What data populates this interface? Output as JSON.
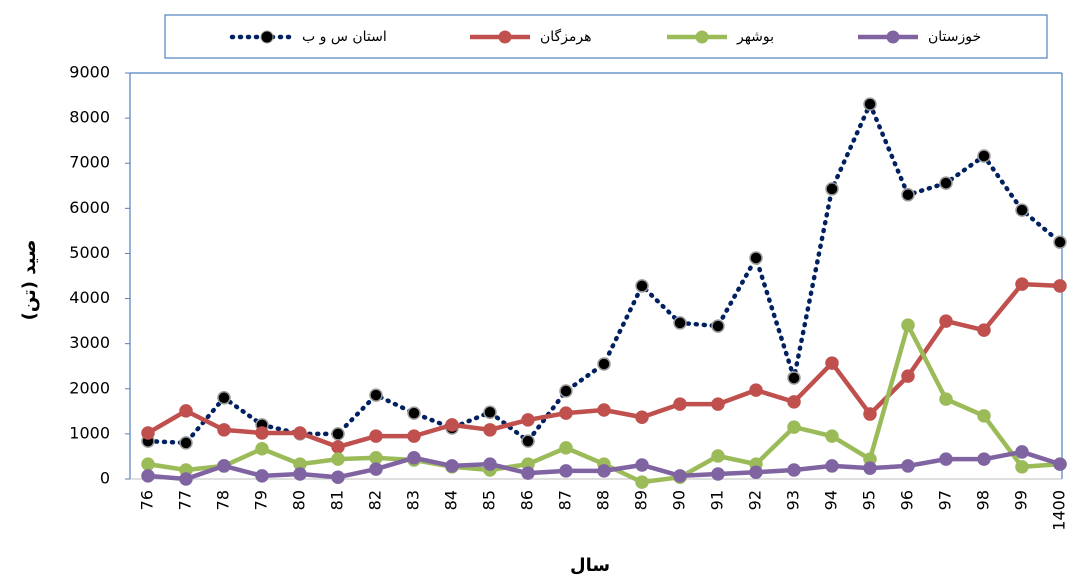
{
  "chart_data": {
    "type": "line",
    "xlabel": "سال",
    "ylabel": "صید (تن)",
    "categories": [
      "76",
      "77",
      "78",
      "79",
      "80",
      "81",
      "82",
      "83",
      "84",
      "85",
      "86",
      "87",
      "88",
      "89",
      "90",
      "91",
      "92",
      "93",
      "94",
      "95",
      "96",
      "97",
      "98",
      "99",
      "1400"
    ],
    "series": [
      {
        "name": "استان س و ب",
        "color": "#002060",
        "dash": "dotted",
        "marker_color": "#000000",
        "values": [
          840,
          800,
          1800,
          1200,
          1000,
          1000,
          1860,
          1460,
          1130,
          1480,
          840,
          1950,
          2550,
          4280,
          3460,
          3390,
          4900,
          2240,
          6430,
          8310,
          6300,
          6560,
          7160,
          5960,
          5250
        ]
      },
      {
        "name": "هرمزگان",
        "color": "#c0504d",
        "values": [
          1020,
          1510,
          1090,
          1020,
          1020,
          710,
          950,
          950,
          1200,
          1090,
          1310,
          1460,
          1530,
          1370,
          1660,
          1660,
          1970,
          1710,
          2570,
          1440,
          2280,
          3500,
          3300,
          4320,
          4280
        ]
      },
      {
        "name": "بوشهر",
        "color": "#9bbb59",
        "values": [
          330,
          200,
          290,
          670,
          330,
          440,
          470,
          420,
          270,
          200,
          330,
          690,
          330,
          -70,
          40,
          510,
          330,
          1150,
          950,
          440,
          3410,
          1770,
          1400,
          270,
          330
        ]
      },
      {
        "name": "خوزستان",
        "color": "#8064a2",
        "values": [
          70,
          0,
          290,
          70,
          110,
          40,
          220,
          470,
          290,
          330,
          130,
          180,
          180,
          310,
          70,
          110,
          150,
          200,
          290,
          240,
          290,
          440,
          440,
          600,
          330
        ]
      }
    ],
    "ylim": [
      0,
      9000
    ],
    "yticks": [
      0,
      1000,
      2000,
      3000,
      4000,
      5000,
      6000,
      7000,
      8000,
      9000
    ],
    "grid": false,
    "legend": "top"
  }
}
